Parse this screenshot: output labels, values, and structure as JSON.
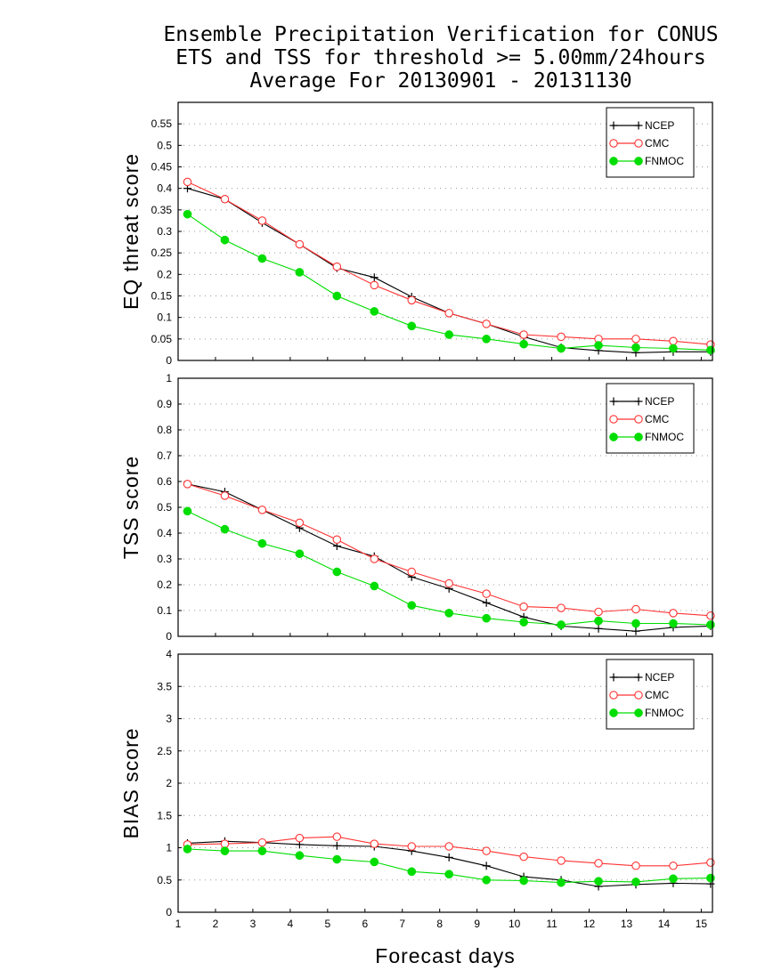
{
  "title_lines": [
    "Ensemble Precipitation Verification for CONUS",
    "ETS and TSS for threshold >= 5.00mm/24hours",
    "Average For 20130901 - 20131130"
  ],
  "colors": {
    "NCEP": "#000000",
    "CMC": "#ff3333",
    "FNMOC": "#00dd00",
    "grid": "#999999"
  },
  "chart_data": [
    {
      "type": "line",
      "ylabel": "EQ threat score",
      "ylim": [
        0,
        0.6
      ],
      "yticks": [
        "0",
        "0.05",
        "0.1",
        "0.15",
        "0.2",
        "0.25",
        "0.3",
        "0.35",
        "0.4",
        "0.45",
        "0.5",
        "0.55"
      ],
      "grid": true,
      "legend": "top-right",
      "x": [
        1.25,
        2.25,
        3.25,
        4.25,
        5.25,
        6.25,
        7.25,
        8.25,
        9.25,
        10.25,
        11.25,
        12.25,
        13.25,
        14.25,
        15.25
      ],
      "series": [
        {
          "name": "NCEP",
          "marker": "plus",
          "values": [
            0.4,
            0.375,
            0.32,
            0.27,
            0.215,
            0.193,
            0.148,
            0.11,
            0.085,
            0.055,
            0.03,
            0.023,
            0.018,
            0.02,
            0.02
          ]
        },
        {
          "name": "CMC",
          "marker": "circle-open",
          "values": [
            0.415,
            0.375,
            0.325,
            0.27,
            0.218,
            0.175,
            0.14,
            0.11,
            0.085,
            0.06,
            0.055,
            0.05,
            0.05,
            0.045,
            0.037
          ]
        },
        {
          "name": "FNMOC",
          "marker": "circle-filled",
          "values": [
            0.34,
            0.28,
            0.237,
            0.205,
            0.15,
            0.114,
            0.08,
            0.06,
            0.05,
            0.038,
            0.028,
            0.035,
            0.03,
            0.028,
            0.024
          ]
        }
      ]
    },
    {
      "type": "line",
      "ylabel": "TSS score",
      "ylim": [
        0,
        1
      ],
      "yticks": [
        "0",
        "0.1",
        "0.2",
        "0.3",
        "0.4",
        "0.5",
        "0.6",
        "0.7",
        "0.8",
        "0.9",
        "1"
      ],
      "grid": true,
      "legend": "top-right",
      "x": [
        1.25,
        2.25,
        3.25,
        4.25,
        5.25,
        6.25,
        7.25,
        8.25,
        9.25,
        10.25,
        11.25,
        12.25,
        13.25,
        14.25,
        15.25
      ],
      "series": [
        {
          "name": "NCEP",
          "marker": "plus",
          "values": [
            0.59,
            0.56,
            0.49,
            0.42,
            0.35,
            0.31,
            0.23,
            0.185,
            0.13,
            0.075,
            0.04,
            0.03,
            0.02,
            0.035,
            0.04
          ]
        },
        {
          "name": "CMC",
          "marker": "circle-open",
          "values": [
            0.59,
            0.545,
            0.49,
            0.44,
            0.375,
            0.3,
            0.25,
            0.205,
            0.165,
            0.115,
            0.11,
            0.095,
            0.105,
            0.09,
            0.08
          ]
        },
        {
          "name": "FNMOC",
          "marker": "circle-filled",
          "values": [
            0.485,
            0.415,
            0.36,
            0.32,
            0.25,
            0.195,
            0.12,
            0.09,
            0.07,
            0.055,
            0.045,
            0.06,
            0.05,
            0.05,
            0.045
          ]
        }
      ]
    },
    {
      "type": "line",
      "ylabel": "BIAS score",
      "xlabel": "Forecast days",
      "ylim": [
        0,
        4
      ],
      "yticks": [
        "0",
        "0.5",
        "1",
        "1.5",
        "2",
        "2.5",
        "3",
        "3.5",
        "4"
      ],
      "xticks": [
        "1",
        "2",
        "3",
        "4",
        "5",
        "6",
        "7",
        "8",
        "9",
        "10",
        "11",
        "12",
        "13",
        "14",
        "15"
      ],
      "grid": true,
      "legend": "top-right",
      "x": [
        1.25,
        2.25,
        3.25,
        4.25,
        5.25,
        6.25,
        7.25,
        8.25,
        9.25,
        10.25,
        11.25,
        12.25,
        13.25,
        14.25,
        15.25
      ],
      "series": [
        {
          "name": "NCEP",
          "marker": "plus",
          "values": [
            1.07,
            1.1,
            1.08,
            1.05,
            1.03,
            1.02,
            0.95,
            0.85,
            0.72,
            0.55,
            0.5,
            0.4,
            0.43,
            0.45,
            0.44
          ]
        },
        {
          "name": "CMC",
          "marker": "circle-open",
          "values": [
            1.05,
            1.06,
            1.08,
            1.15,
            1.17,
            1.06,
            1.02,
            1.02,
            0.95,
            0.86,
            0.8,
            0.76,
            0.72,
            0.72,
            0.77
          ]
        },
        {
          "name": "FNMOC",
          "marker": "circle-filled",
          "values": [
            0.98,
            0.95,
            0.95,
            0.88,
            0.82,
            0.78,
            0.63,
            0.59,
            0.5,
            0.49,
            0.46,
            0.48,
            0.47,
            0.52,
            0.53
          ]
        }
      ]
    }
  ]
}
